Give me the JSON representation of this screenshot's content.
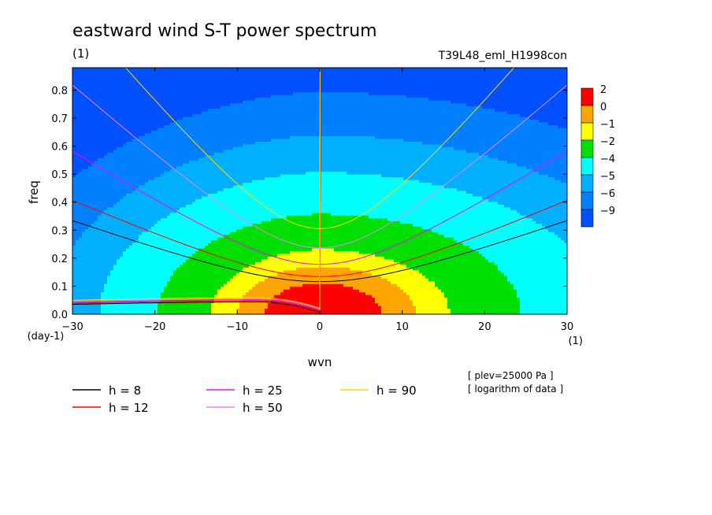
{
  "header": {
    "title": "eastward wind S-T power spectrum",
    "units": "(1)",
    "run_id": "T39L48_eml_H1998con"
  },
  "footer": {
    "notes": [
      "[ plev=25000 Pa ]",
      "[ logarithm of data ]"
    ]
  },
  "colorbar": {
    "labels": [
      "2",
      "0",
      "−1",
      "−2",
      "−4",
      "−5",
      "−6",
      "−9"
    ],
    "colors": [
      "#ff0000",
      "#ffa500",
      "#ffff00",
      "#00e000",
      "#00ffff",
      "#00b0ff",
      "#0080ff",
      "#0050ff"
    ]
  },
  "chart_data": {
    "type": "heatmap",
    "title": "eastward wind S-T power spectrum",
    "xlabel": "wvn",
    "xunits": "(1)",
    "ylabel": "freq",
    "yunits": "(day-1)",
    "xlim": [
      -30,
      30
    ],
    "ylim": [
      0,
      0.88
    ],
    "xticks": [
      -30,
      -20,
      -10,
      0,
      10,
      20,
      30
    ],
    "yticks": [
      0.0,
      0.1,
      0.2,
      0.3,
      0.4,
      0.5,
      0.6,
      0.7,
      0.8
    ],
    "contour_levels": [
      -9,
      -6,
      -5,
      -4,
      -2,
      -1,
      0,
      2
    ],
    "legend": {
      "placement": "below",
      "entries": [
        {
          "label": "h =  8",
          "color": "#000000"
        },
        {
          "label": "h = 12",
          "color": "#ff0000"
        },
        {
          "label": "h = 25",
          "color": "#ff00ff"
        },
        {
          "label": "h = 50",
          "color": "#ee82ee"
        },
        {
          "label": "h = 90",
          "color": "#ffd700"
        }
      ]
    },
    "dispersion_h": [
      8,
      12,
      25,
      50,
      90
    ]
  }
}
